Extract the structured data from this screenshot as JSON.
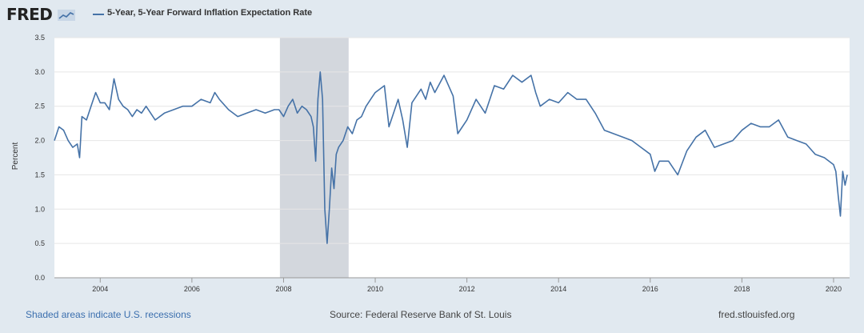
{
  "brand": "FRED",
  "footer": {
    "left": "Shaded areas indicate U.S. recessions",
    "center": "Source: Federal Reserve Bank of St. Louis",
    "right": "fred.stlouisfed.org"
  },
  "colors": {
    "series": "#4572a7",
    "recession": "#c8cdd4",
    "background": "#e1e9f0",
    "plot": "#ffffff"
  },
  "chart_data": {
    "type": "line",
    "title": "",
    "xlabel": "",
    "ylabel": "Percent",
    "xlim": [
      2003.0,
      2020.35
    ],
    "ylim": [
      0.0,
      3.5
    ],
    "y_ticks": [
      "0.0",
      "0.5",
      "1.0",
      "1.5",
      "2.0",
      "2.5",
      "3.0",
      "3.5"
    ],
    "x_ticks": [
      "2004",
      "2006",
      "2008",
      "2010",
      "2012",
      "2014",
      "2016",
      "2018",
      "2020"
    ],
    "grid": true,
    "legend_position": "top-left",
    "recessions": [
      [
        2007.92,
        2009.42
      ]
    ],
    "series": [
      {
        "name": "5-Year, 5-Year Forward Inflation Expectation Rate",
        "x": [
          2003.0,
          2003.1,
          2003.2,
          2003.3,
          2003.4,
          2003.5,
          2003.55,
          2003.6,
          2003.7,
          2003.8,
          2003.9,
          2004.0,
          2004.1,
          2004.2,
          2004.3,
          2004.4,
          2004.5,
          2004.6,
          2004.7,
          2004.8,
          2004.9,
          2005.0,
          2005.2,
          2005.4,
          2005.6,
          2005.8,
          2006.0,
          2006.2,
          2006.4,
          2006.5,
          2006.6,
          2006.8,
          2007.0,
          2007.2,
          2007.4,
          2007.6,
          2007.8,
          2007.9,
          2008.0,
          2008.1,
          2008.2,
          2008.3,
          2008.4,
          2008.5,
          2008.6,
          2008.65,
          2008.7,
          2008.75,
          2008.8,
          2008.85,
          2008.9,
          2008.95,
          2009.0,
          2009.05,
          2009.1,
          2009.15,
          2009.2,
          2009.3,
          2009.4,
          2009.5,
          2009.6,
          2009.7,
          2009.8,
          2009.9,
          2010.0,
          2010.2,
          2010.3,
          2010.5,
          2010.6,
          2010.7,
          2010.8,
          2011.0,
          2011.1,
          2011.2,
          2011.3,
          2011.5,
          2011.7,
          2011.8,
          2012.0,
          2012.2,
          2012.4,
          2012.6,
          2012.8,
          2013.0,
          2013.2,
          2013.4,
          2013.5,
          2013.6,
          2013.8,
          2014.0,
          2014.2,
          2014.4,
          2014.6,
          2014.8,
          2015.0,
          2015.2,
          2015.4,
          2015.6,
          2015.8,
          2016.0,
          2016.1,
          2016.2,
          2016.4,
          2016.6,
          2016.8,
          2017.0,
          2017.2,
          2017.4,
          2017.6,
          2017.8,
          2018.0,
          2018.2,
          2018.4,
          2018.6,
          2018.8,
          2019.0,
          2019.2,
          2019.4,
          2019.6,
          2019.8,
          2020.0,
          2020.05,
          2020.1,
          2020.15,
          2020.2,
          2020.25,
          2020.3
        ],
        "values": [
          2.0,
          2.2,
          2.15,
          2.0,
          1.9,
          1.95,
          1.75,
          2.35,
          2.3,
          2.5,
          2.7,
          2.55,
          2.55,
          2.45,
          2.9,
          2.6,
          2.5,
          2.45,
          2.35,
          2.45,
          2.4,
          2.5,
          2.3,
          2.4,
          2.45,
          2.5,
          2.5,
          2.6,
          2.55,
          2.7,
          2.6,
          2.45,
          2.35,
          2.4,
          2.45,
          2.4,
          2.45,
          2.45,
          2.35,
          2.5,
          2.6,
          2.4,
          2.5,
          2.45,
          2.35,
          2.2,
          1.7,
          2.6,
          3.0,
          2.6,
          1.0,
          0.5,
          1.0,
          1.6,
          1.3,
          1.8,
          1.9,
          2.0,
          2.2,
          2.1,
          2.3,
          2.35,
          2.5,
          2.6,
          2.7,
          2.8,
          2.2,
          2.6,
          2.3,
          1.9,
          2.55,
          2.75,
          2.6,
          2.85,
          2.7,
          2.95,
          2.65,
          2.1,
          2.3,
          2.6,
          2.4,
          2.8,
          2.75,
          2.95,
          2.85,
          2.95,
          2.7,
          2.5,
          2.6,
          2.55,
          2.7,
          2.6,
          2.6,
          2.4,
          2.15,
          2.1,
          2.05,
          2.0,
          1.9,
          1.8,
          1.55,
          1.7,
          1.7,
          1.5,
          1.85,
          2.05,
          2.15,
          1.9,
          1.95,
          2.0,
          2.15,
          2.25,
          2.2,
          2.2,
          2.3,
          2.05,
          2.0,
          1.95,
          1.8,
          1.75,
          1.65,
          1.55,
          1.2,
          0.9,
          1.55,
          1.35,
          1.5
        ]
      }
    ]
  }
}
